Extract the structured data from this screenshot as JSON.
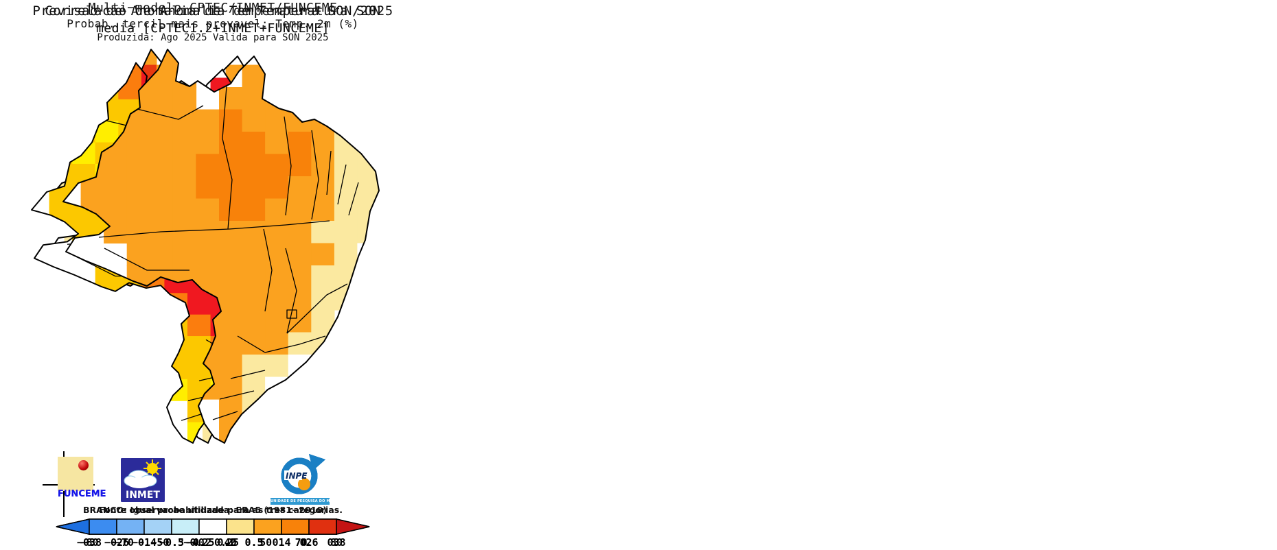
{
  "panels": [
    {
      "id": "correlation",
      "title_lines": [
        "Correlacao de Anomalia de Temperatura SON",
        "media [CPTEC1.2+INMET+FUNCEME]",
        ""
      ],
      "footnote": "Fonte observacao utilizada: ERA5 (1981−2010)",
      "colorbar": {
        "ticks": [
          "−0.8",
          "−0.6",
          "−0.4",
          "−0.3",
          "−0.2",
          "0.2",
          "0.3",
          "0.4",
          "0.6",
          "0.8"
        ],
        "segment_colors": [
          "#3c8cf0",
          "#74b2f4",
          "#a4d2f6",
          "#c8eef8",
          "#ffffff",
          "#fbe38c",
          "#fba21f",
          "#f8820a",
          "#e8380f"
        ],
        "left_arrow_color": "#2e83ee",
        "right_arrow_color": "#c81a12"
      },
      "map": {
        "palette": {
          "Y": "#fbe9a0",
          "O": "#fba21f",
          "D": "#f8820a",
          "R": "#e8380f",
          "K": "#c81a12",
          "W": "#ffffff"
        },
        "rows": [
          "....O...W.....",
          "...ORO..OO....",
          "..OOOO.DRROO..",
          ".YYOOOODRKROO.",
          ".YYOYYODRKKROO",
          "YYYOYYOORKKDOO",
          "YYOOOOODDRDOOY",
          ".YYODDDOODDOOY",
          ".YYODDROODRDOY",
          "..YODDDODDOOYW",
          "...ODDDORRDOYW",
          "...YODDORRDDYW",
          "....ODDOODDYYW",
          "....OODOODOYW.",
          ".....OOOOWWYY.",
          ".....YOWYWW...",
          "......WWYW....",
          ".......YY....."
        ]
      }
    },
    {
      "id": "probability",
      "title_lines": [
        "Multi−modelo CPTEC/INMET/FUNCEME",
        "Probab. tercil mais provavel: Temp. 2m (%)",
        "Produzida: Ago 2025   Valida para SON 2025"
      ],
      "footnote": "BRANCO: Igual probabilidade para as tres categorias.",
      "colorbar": {
        "ticks": [
          "−80",
          "−70",
          "−50",
          "−40",
          "40",
          "50",
          "70",
          "80"
        ],
        "segment_colors": [
          "#4646f2",
          "#8484ec",
          "#c4c4f8",
          "#ffffff",
          "#ffee00",
          "#fcc800",
          "#fb7d0e"
        ],
        "left_arrow_color": "#2424f2",
        "right_arrow_color": "#f51020"
      },
      "map": {
        "palette": {
          "Y": "#ffee00",
          "G": "#fcc800",
          "O": "#fb7d0e",
          "R": "#f01820",
          "W": "#ffffff"
        },
        "rows": [
          "....OR..W.....",
          "...GOR..RG....",
          "..GGGG.GRRGG..",
          ".GGYGGGRRRRGG.",
          ".GYGGYGRRRRGRG",
          "GGGYYGGGRRRGGG",
          ".GGGGGGORRGOGG",
          ".GGGOORRROGGOG",
          "..GGORRRROGOGG",
          "...GORRRRRGOGW",
          "...GGORRRORRGW",
          "....GGORRRRGGW",
          "....GGGORROGG.",
          ".....GGGOWWGG.",
          ".....YGGYWWG..",
          "......YGYW....",
          ".......GY.....",
          ".......Y......"
        ]
      }
    },
    {
      "id": "forecast",
      "title_lines": [
        "Previsao de Anomalia de Temperatura SON/2025",
        "media [CPTEC1.2+INMET+FUNCEME]",
        ""
      ],
      "footnote": "",
      "colorbar": {
        "ticks": [
          "−3",
          "−2",
          "−1",
          "−0.5",
          "−0.25",
          "0.25",
          "0.5",
          "1",
          "2",
          "3"
        ],
        "segment_colors": [
          "#3c8cf0",
          "#74b2f4",
          "#a4d2f6",
          "#c8eef8",
          "#ffffff",
          "#fbe38c",
          "#fba21f",
          "#f8820a",
          "#e03010"
        ],
        "left_arrow_color": "#1d6fe0",
        "right_arrow_color": "#c41414"
      },
      "map": {
        "palette": {
          "Y": "#fbe9a0",
          "O": "#fba21f",
          "D": "#f8820a",
          "W": "#ffffff"
        },
        "rows": [
          "....OO..W.....",
          "...OOO..OO....",
          "..OOOO.OOOOO..",
          ".OOOOOODOOOOY.",
          ".OOOOOODDODOYY",
          "OOOOOODDDDDOYY",
          ".OOOOODDDDOOYY",
          ".OOOOOODDOOOYY",
          "..OOOOOOOOOYYY",
          "...OOOOOOOOOYW",
          "...OOOOOOOOYYW",
          "....ODOOOOOYY.",
          "....OOOOOOOY..",
          ".....OOOOOYY..",
          ".....OOOYYW...",
          "......OOYW....",
          ".......OY.....",
          ".......O......"
        ]
      }
    }
  ],
  "logos": {
    "funceme": {
      "label": "FUNCEME"
    },
    "inmet": {
      "label": "INMET"
    },
    "inpe": {
      "label": "INPE",
      "sublabel": "UNIDADE DE PESQUISA DO MCTI"
    }
  }
}
